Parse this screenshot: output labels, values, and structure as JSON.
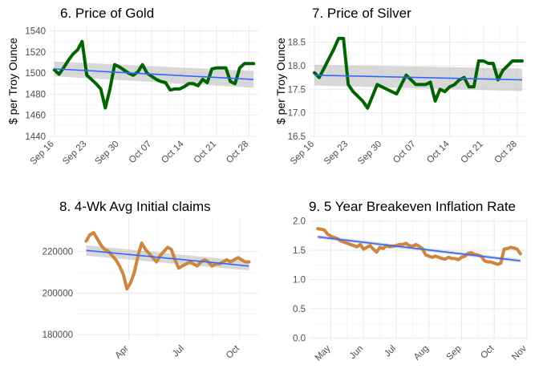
{
  "chart_data": [
    {
      "type": "line",
      "title": "6. Price of Gold",
      "ylabel": "$ per Troy Ounce",
      "xlabel": "",
      "x_ticks": [
        "Sep 16",
        "Sep 23",
        "Sep 30",
        "Oct 07",
        "Oct 14",
        "Oct 21",
        "Oct 28"
      ],
      "x_tick_days": [
        0,
        7,
        14,
        21,
        28,
        35,
        42
      ],
      "xlim_days": [
        -1,
        44
      ],
      "ylim": [
        1440,
        1545
      ],
      "y_ticks": [
        "1440",
        "1460",
        "1480",
        "1500",
        "1520",
        "1540"
      ],
      "y_tick_values": [
        1440,
        1460,
        1480,
        1500,
        1520,
        1540
      ],
      "grid": true,
      "line_color": "#006400",
      "trend_color": "#3366FF",
      "band_color": "#BEBEBE",
      "x_days": [
        0,
        1,
        2,
        3,
        4,
        5,
        6,
        7,
        8,
        9,
        10,
        11,
        12,
        13,
        14,
        15,
        16,
        17,
        18,
        19,
        20,
        21,
        22,
        23,
        24,
        25,
        26,
        27,
        28,
        29,
        30,
        31,
        32,
        33,
        34,
        35,
        36,
        37,
        38,
        39,
        40,
        41,
        42,
        43
      ],
      "values": [
        1503,
        1499,
        1505,
        1512,
        1518,
        1522,
        1530,
        1498,
        1494,
        1490,
        1485,
        1467,
        1485,
        1508,
        1506,
        1503,
        1500,
        1498,
        1501,
        1508,
        1500,
        1497,
        1494,
        1492,
        1491,
        1484,
        1485,
        1485,
        1487,
        1490,
        1490,
        1488,
        1494,
        1491,
        1504,
        1505,
        1505,
        1505,
        1492,
        1490,
        1505,
        1509,
        1509,
        1509
      ],
      "trend": {
        "x0": 0,
        "y0": 1504,
        "x1": 43,
        "y1": 1494,
        "band_halfwidth_start": 7,
        "band_halfwidth_end": 8
      }
    },
    {
      "type": "line",
      "title": "7. Price of Silver",
      "ylabel": "$ per Troy Ounce",
      "xlabel": "",
      "x_ticks": [
        "Sep 16",
        "Sep 23",
        "Sep 30",
        "Oct 07",
        "Oct 14",
        "Oct 21",
        "Oct 28"
      ],
      "x_tick_days": [
        0,
        7,
        14,
        21,
        28,
        35,
        42
      ],
      "xlim_days": [
        -1,
        44
      ],
      "ylim": [
        16.5,
        18.85
      ],
      "y_ticks": [
        "16.5",
        "17.0",
        "17.5",
        "18.0",
        "18.5"
      ],
      "y_tick_values": [
        16.5,
        17.0,
        17.5,
        18.0,
        18.5
      ],
      "grid": true,
      "line_color": "#006400",
      "trend_color": "#3366FF",
      "band_color": "#BEBEBE",
      "x_days": [
        0,
        1,
        2,
        3,
        4,
        5,
        6,
        7,
        8,
        9,
        10,
        11,
        12,
        13,
        14,
        15,
        16,
        17,
        18,
        19,
        20,
        21,
        22,
        23,
        24,
        25,
        26,
        27,
        28,
        29,
        30,
        31,
        32,
        33,
        34,
        35,
        36,
        37,
        38,
        39,
        40,
        41,
        42,
        43
      ],
      "values": [
        17.85,
        17.75,
        17.95,
        18.15,
        18.35,
        18.58,
        18.58,
        17.6,
        17.45,
        17.35,
        17.25,
        17.1,
        17.35,
        17.6,
        17.55,
        17.5,
        17.45,
        17.4,
        17.6,
        17.8,
        17.7,
        17.6,
        17.6,
        17.6,
        17.65,
        17.25,
        17.5,
        17.45,
        17.55,
        17.6,
        17.7,
        17.75,
        17.55,
        17.55,
        18.1,
        18.1,
        18.05,
        18.05,
        17.7,
        17.9,
        18.0,
        18.1,
        18.1,
        18.1
      ],
      "trend": {
        "x0": 0,
        "y0": 17.8,
        "x1": 43,
        "y1": 17.7,
        "band_halfwidth_start": 0.22,
        "band_halfwidth_end": 0.24
      }
    },
    {
      "type": "line",
      "title": "8. 4-Wk Avg Initial claims",
      "ylabel": "",
      "xlabel": "",
      "x_ticks": [
        "Apr",
        "Jul",
        "Oct"
      ],
      "x_tick_months": [
        4,
        7,
        10
      ],
      "xlim_months": [
        1.2,
        11.0
      ],
      "ylim": [
        177000,
        236000
      ],
      "y_ticks": [
        "180000",
        "200000",
        "220000"
      ],
      "y_tick_values": [
        180000,
        200000,
        220000
      ],
      "grid": true,
      "line_color": "#CD853F",
      "trend_color": "#3366FF",
      "band_color": "#BEBEBE",
      "x_months": [
        1.7,
        1.9,
        2.1,
        2.3,
        2.5,
        2.7,
        2.9,
        3.1,
        3.3,
        3.5,
        3.7,
        3.9,
        4.1,
        4.3,
        4.5,
        4.7,
        4.9,
        5.1,
        5.3,
        5.5,
        5.7,
        5.9,
        6.1,
        6.3,
        6.5,
        6.7,
        6.9,
        7.1,
        7.3,
        7.5,
        7.7,
        7.9,
        8.1,
        8.3,
        8.5,
        8.7,
        8.9,
        9.1,
        9.3,
        9.5,
        9.7,
        9.9,
        10.1,
        10.3,
        10.5
      ],
      "values": [
        225000,
        228000,
        229000,
        226000,
        223000,
        221000,
        220000,
        218000,
        216000,
        213000,
        209000,
        202000,
        205000,
        210000,
        218000,
        224000,
        221000,
        219000,
        217000,
        215000,
        218000,
        220000,
        222000,
        221000,
        216000,
        212000,
        213000,
        214000,
        215000,
        214000,
        213000,
        215000,
        216000,
        215000,
        213000,
        214000,
        214000,
        215000,
        216000,
        215000,
        216000,
        217000,
        216000,
        215000,
        215000
      ],
      "trend": {
        "x0": 1.7,
        "y0": 220500,
        "x1": 10.5,
        "y1": 213000,
        "band_halfwidth_start": 2500,
        "band_halfwidth_end": 2200
      }
    },
    {
      "type": "line",
      "title": "9. 5 Year Breakeven Inflation Rate",
      "ylabel": "",
      "xlabel": "",
      "x_ticks": [
        "May",
        "Jun",
        "Jul",
        "Aug",
        "Sep",
        "Oct",
        "Nov"
      ],
      "x_tick_months": [
        5,
        6,
        7,
        8,
        9,
        10,
        11
      ],
      "xlim_months": [
        4.35,
        11.0
      ],
      "ylim": [
        -0.05,
        2.05
      ],
      "y_ticks": [
        "0.0",
        "0.5",
        "1.0",
        "1.5",
        "2.0"
      ],
      "y_tick_values": [
        0.0,
        0.5,
        1.0,
        1.5,
        2.0
      ],
      "grid": true,
      "line_color": "#CD853F",
      "trend_color": "#3366FF",
      "band_color": "#BEBEBE",
      "x_months": [
        4.6,
        4.7,
        4.8,
        4.9,
        5.0,
        5.1,
        5.2,
        5.3,
        5.4,
        5.5,
        5.6,
        5.7,
        5.8,
        5.9,
        6.0,
        6.1,
        6.2,
        6.3,
        6.4,
        6.5,
        6.6,
        6.7,
        6.8,
        6.9,
        7.0,
        7.1,
        7.2,
        7.3,
        7.4,
        7.5,
        7.6,
        7.7,
        7.8,
        7.9,
        8.0,
        8.1,
        8.2,
        8.3,
        8.4,
        8.5,
        8.6,
        8.7,
        8.8,
        8.9,
        9.0,
        9.1,
        9.2,
        9.3,
        9.4,
        9.5,
        9.6,
        9.7,
        9.8,
        9.9,
        10.0,
        10.1,
        10.2,
        10.3,
        10.4,
        10.5,
        10.6,
        10.7,
        10.8
      ],
      "values": [
        1.87,
        1.86,
        1.85,
        1.78,
        1.74,
        1.72,
        1.7,
        1.66,
        1.64,
        1.62,
        1.6,
        1.58,
        1.56,
        1.6,
        1.52,
        1.55,
        1.58,
        1.52,
        1.47,
        1.55,
        1.53,
        1.58,
        1.56,
        1.57,
        1.58,
        1.6,
        1.6,
        1.62,
        1.58,
        1.57,
        1.6,
        1.57,
        1.53,
        1.42,
        1.4,
        1.38,
        1.4,
        1.38,
        1.36,
        1.35,
        1.38,
        1.36,
        1.36,
        1.34,
        1.38,
        1.4,
        1.45,
        1.46,
        1.43,
        1.42,
        1.4,
        1.32,
        1.3,
        1.3,
        1.28,
        1.26,
        1.28,
        1.52,
        1.53,
        1.55,
        1.54,
        1.52,
        1.44
      ],
      "trend": {
        "x0": 4.6,
        "y0": 1.73,
        "x1": 10.8,
        "y1": 1.32,
        "band_halfwidth_start": 0.03,
        "band_halfwidth_end": 0.03
      }
    }
  ]
}
